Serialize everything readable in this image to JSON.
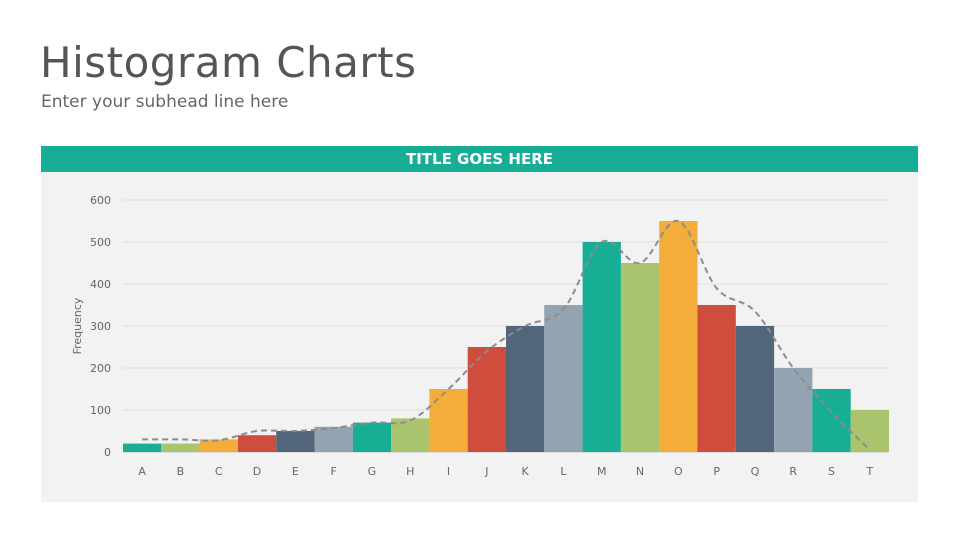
{
  "slide": {
    "title": "Histogram Charts",
    "subtitle": "Enter your subhead line here",
    "header_color": "#17ae95"
  },
  "chart_data": {
    "type": "bar",
    "title": "TITLE GOES HERE",
    "xlabel": "",
    "ylabel": "Frequency",
    "ylim": [
      0,
      600
    ],
    "yticks": [
      0,
      100,
      200,
      300,
      400,
      500,
      600
    ],
    "grid": true,
    "categories": [
      "A",
      "B",
      "C",
      "D",
      "E",
      "F",
      "G",
      "H",
      "I",
      "J",
      "K",
      "L",
      "M",
      "N",
      "O",
      "P",
      "Q",
      "R",
      "S",
      "T"
    ],
    "values": [
      20,
      20,
      30,
      40,
      50,
      60,
      70,
      80,
      150,
      250,
      300,
      350,
      500,
      450,
      550,
      350,
      300,
      200,
      150,
      100
    ],
    "bar_colors": [
      "#17ae95",
      "#a9c46c",
      "#f4ac3b",
      "#cf4d3c",
      "#53657a",
      "#93a3b1",
      "#17ae95",
      "#a9c46c",
      "#f4ac3b",
      "#cf4d3c",
      "#53657a",
      "#93a3b1",
      "#17ae95",
      "#a9c46c",
      "#f4ac3b",
      "#cf4d3c",
      "#53657a",
      "#93a3b1",
      "#17ae95",
      "#a9c46c"
    ],
    "trend_line": {
      "style": "dashed",
      "color": "#8c8c8c",
      "values": [
        30,
        30,
        28,
        50,
        50,
        57,
        70,
        75,
        150,
        240,
        300,
        340,
        500,
        450,
        550,
        390,
        335,
        200,
        95,
        5
      ]
    }
  }
}
